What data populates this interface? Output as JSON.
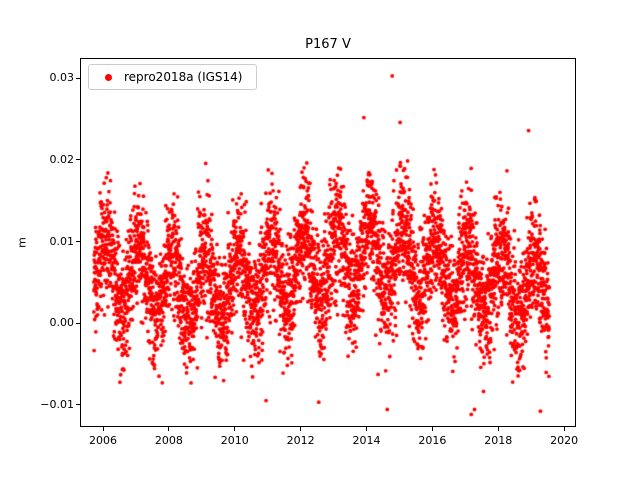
{
  "legend": {
    "label": "repro2018a (IGS14)",
    "marker_color": "#ff0000"
  },
  "chart_data": {
    "type": "scatter",
    "title": "P167 V",
    "xlabel": "",
    "ylabel": "m",
    "grid": false,
    "legend_position": "upper left",
    "background_color": "#ffffff",
    "spine_color": "#000000",
    "xlim": [
      2005.3,
      2020.3
    ],
    "ylim": [
      -0.0125,
      0.0325
    ],
    "x_ticks": [
      2006,
      2008,
      2010,
      2012,
      2014,
      2016,
      2018,
      2020
    ],
    "x_tick_labels": [
      "2006",
      "2008",
      "2010",
      "2012",
      "2014",
      "2016",
      "2018",
      "2020"
    ],
    "y_ticks": [
      -0.01,
      0.0,
      0.01,
      0.02,
      0.03
    ],
    "y_tick_labels": [
      "−0.01",
      "0.00",
      "0.01",
      "0.02",
      "0.03"
    ],
    "series": [
      {
        "name": "repro2018a (IGS14)",
        "color": "#ff0000",
        "marker": "dot",
        "marker_radius_px": 1.9,
        "generator": {
          "seed": 167,
          "t_start": 2005.72,
          "t_end": 2019.55,
          "n_points": 4800,
          "mean": 0.0062,
          "annual_amplitude": 0.0042,
          "annual_phase": 0.15,
          "interannual_amplitude": 0.0018,
          "interannual_center": 2014.2,
          "interannual_period": 10.5,
          "noise_sigma": 0.0035,
          "y_min_clip": -0.0113,
          "y_max_clip": 0.0262
        },
        "outliers": [
          {
            "x": 2014.78,
            "y": 0.0303
          },
          {
            "x": 2013.92,
            "y": 0.0252
          },
          {
            "x": 2015.02,
            "y": 0.0246
          },
          {
            "x": 2012.55,
            "y": -0.0097
          },
          {
            "x": 2010.95,
            "y": -0.0095
          },
          {
            "x": 2017.18,
            "y": -0.0112
          },
          {
            "x": 2017.28,
            "y": -0.0106
          },
          {
            "x": 2019.28,
            "y": -0.0108
          },
          {
            "x": 2018.92,
            "y": 0.0236
          },
          {
            "x": 2014.35,
            "y": -0.0063
          }
        ]
      }
    ]
  }
}
